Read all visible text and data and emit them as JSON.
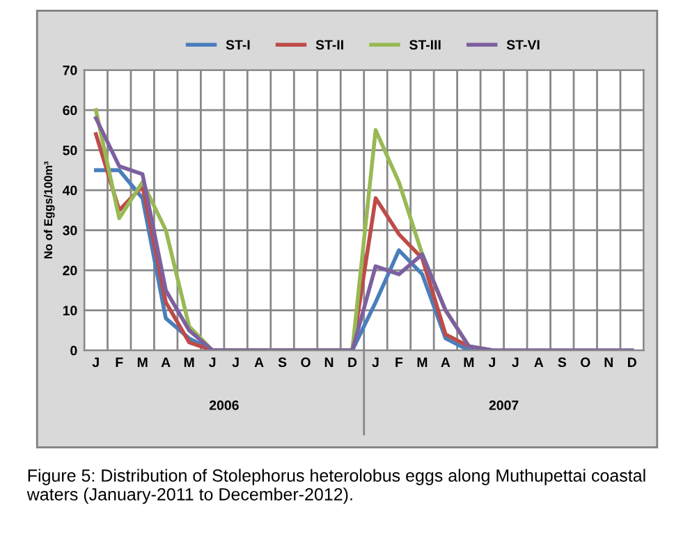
{
  "chart_data": {
    "type": "line",
    "ylabel": "No of Eggs/100m³",
    "categories": [
      "J",
      "F",
      "M",
      "A",
      "M",
      "J",
      "J",
      "A",
      "S",
      "O",
      "N",
      "D",
      "J",
      "F",
      "M",
      "A",
      "M",
      "J",
      "J",
      "A",
      "S",
      "O",
      "N",
      "D"
    ],
    "series": [
      {
        "name": "ST-I",
        "color": "#4a7ebb",
        "values": [
          45,
          45,
          38,
          8,
          3,
          0,
          0,
          0,
          0,
          0,
          0,
          0,
          12,
          25,
          19,
          3,
          0,
          0,
          null,
          null,
          null,
          null,
          null,
          null
        ]
      },
      {
        "name": "ST-II",
        "color": "#be4b48",
        "values": [
          54,
          35,
          41,
          12,
          2,
          0,
          0,
          0,
          0,
          0,
          0,
          0,
          38,
          29,
          23,
          4,
          1,
          0,
          null,
          null,
          null,
          null,
          null,
          null
        ]
      },
      {
        "name": "ST-III",
        "color": "#98b954",
        "values": [
          60,
          33,
          42,
          30,
          6,
          0,
          0,
          0,
          0,
          0,
          0,
          0,
          55,
          42,
          24,
          10,
          1,
          0,
          null,
          null,
          null,
          null,
          null,
          null
        ]
      },
      {
        "name": "ST-VI",
        "color": "#7d60a0",
        "values": [
          58,
          46,
          44,
          15,
          5,
          0,
          0,
          0,
          0,
          0,
          0,
          0,
          21,
          19,
          24,
          10,
          1,
          0,
          0,
          0,
          0,
          0,
          0,
          0
        ]
      }
    ],
    "ylim": [
      0,
      70
    ],
    "yticks": [
      0,
      10,
      20,
      30,
      40,
      50,
      60,
      70
    ],
    "grid": true,
    "legend": "top",
    "marker": "none",
    "line_style": "solid",
    "annotations": [
      "2006",
      "2007",
      "Figure 5: Distribution of Stolephorus heterolobus eggs along Muthupettai coastal waters (January-2011 to December-2012)."
    ]
  }
}
